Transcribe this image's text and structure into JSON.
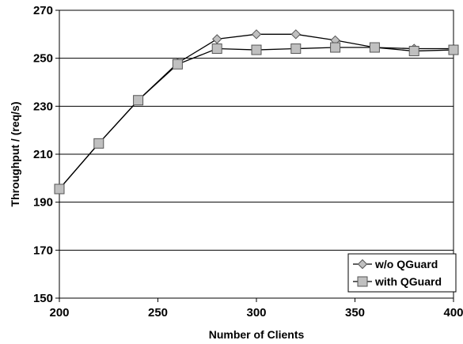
{
  "chart_data": {
    "type": "line",
    "title": "",
    "xlabel": "Number of Clients",
    "ylabel": "Throughput  / (req/s)",
    "xlim": [
      200,
      400
    ],
    "ylim": [
      150,
      270
    ],
    "xticks": [
      200,
      250,
      300,
      350,
      400
    ],
    "yticks": [
      150,
      170,
      190,
      210,
      230,
      250,
      270
    ],
    "grid": "horizontal",
    "legend_position": "bottom-right",
    "x": [
      200,
      220,
      240,
      260,
      280,
      300,
      320,
      340,
      360,
      380,
      400
    ],
    "series": [
      {
        "name": "w/o QGuard",
        "marker": "diamond",
        "values": [
          195.5,
          214.5,
          232.5,
          248,
          258,
          260,
          260,
          257.5,
          254.5,
          254,
          254
        ]
      },
      {
        "name": "with QGuard",
        "marker": "square",
        "values": [
          195.5,
          214.5,
          232.5,
          247.5,
          254,
          253.5,
          254,
          254.5,
          254.5,
          253,
          253.5
        ]
      }
    ]
  },
  "colors": {
    "line": "#000000",
    "marker_fill": "#c0c0c0",
    "grid": "#000000",
    "background": "#ffffff"
  }
}
